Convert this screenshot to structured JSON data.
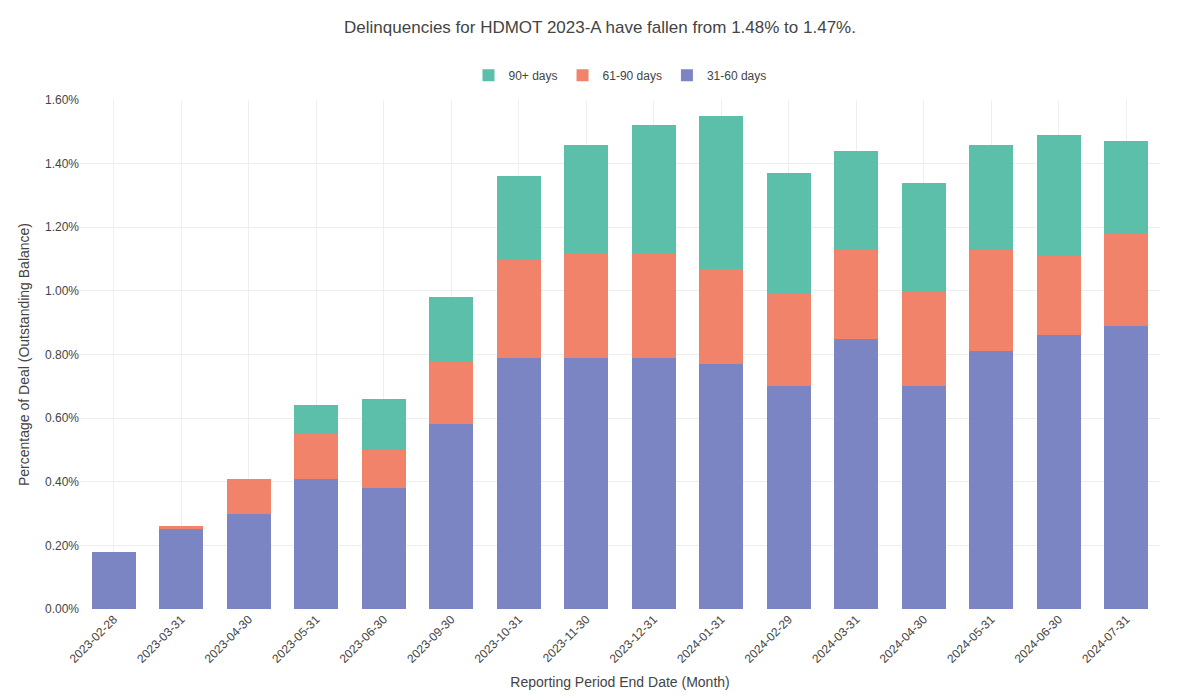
{
  "chart_data": {
    "type": "bar",
    "title": "Delinquencies for HDMOT 2023-A have fallen from 1.48% to 1.47%.",
    "xlabel": "Reporting Period End Date (Month)",
    "ylabel": "Percentage of Deal (Outstanding Balance)",
    "categories": [
      "2023-02-28",
      "2023-03-31",
      "2023-04-30",
      "2023-05-31",
      "2023-06-30",
      "2023-09-30",
      "2023-10-31",
      "2023-11-30",
      "2023-12-31",
      "2024-01-31",
      "2024-02-29",
      "2024-03-31",
      "2024-04-30",
      "2024-05-31",
      "2024-06-30",
      "2024-07-31"
    ],
    "series": [
      {
        "name": "31-60 days",
        "color": "#7b85c4",
        "values": [
          0.0018,
          0.0025,
          0.003,
          0.0041,
          0.0038,
          0.0058,
          0.0079,
          0.0079,
          0.0079,
          0.0077,
          0.007,
          0.0085,
          0.007,
          0.0081,
          0.0086,
          0.0089
        ]
      },
      {
        "name": "61-90 days",
        "color": "#f0836a",
        "values": [
          0.0,
          0.0001,
          0.0011,
          0.0014,
          0.0012,
          0.002,
          0.0031,
          0.0033,
          0.0033,
          0.003,
          0.0029,
          0.0028,
          0.003,
          0.0032,
          0.0025,
          0.0029
        ]
      },
      {
        "name": "90+ days",
        "color": "#5bbfaa",
        "values": [
          0.0,
          0.0,
          0.0,
          0.0009,
          0.0016,
          0.002,
          0.0026,
          0.0034,
          0.004,
          0.0048,
          0.0038,
          0.0031,
          0.0034,
          0.0033,
          0.0038,
          0.0029
        ]
      }
    ],
    "stacked": true,
    "ylim": [
      0.0,
      0.016
    ],
    "yticks": [
      {
        "value": 0.0,
        "label": "0.00%"
      },
      {
        "value": 0.002,
        "label": "0.20%"
      },
      {
        "value": 0.004,
        "label": "0.40%"
      },
      {
        "value": 0.006,
        "label": "0.60%"
      },
      {
        "value": 0.008,
        "label": "0.80%"
      },
      {
        "value": 0.01,
        "label": "1.00%"
      },
      {
        "value": 0.012,
        "label": "1.20%"
      },
      {
        "value": 0.014,
        "label": "1.40%"
      },
      {
        "value": 0.016,
        "label": "1.60%"
      }
    ],
    "grid": true,
    "legend": "top"
  }
}
